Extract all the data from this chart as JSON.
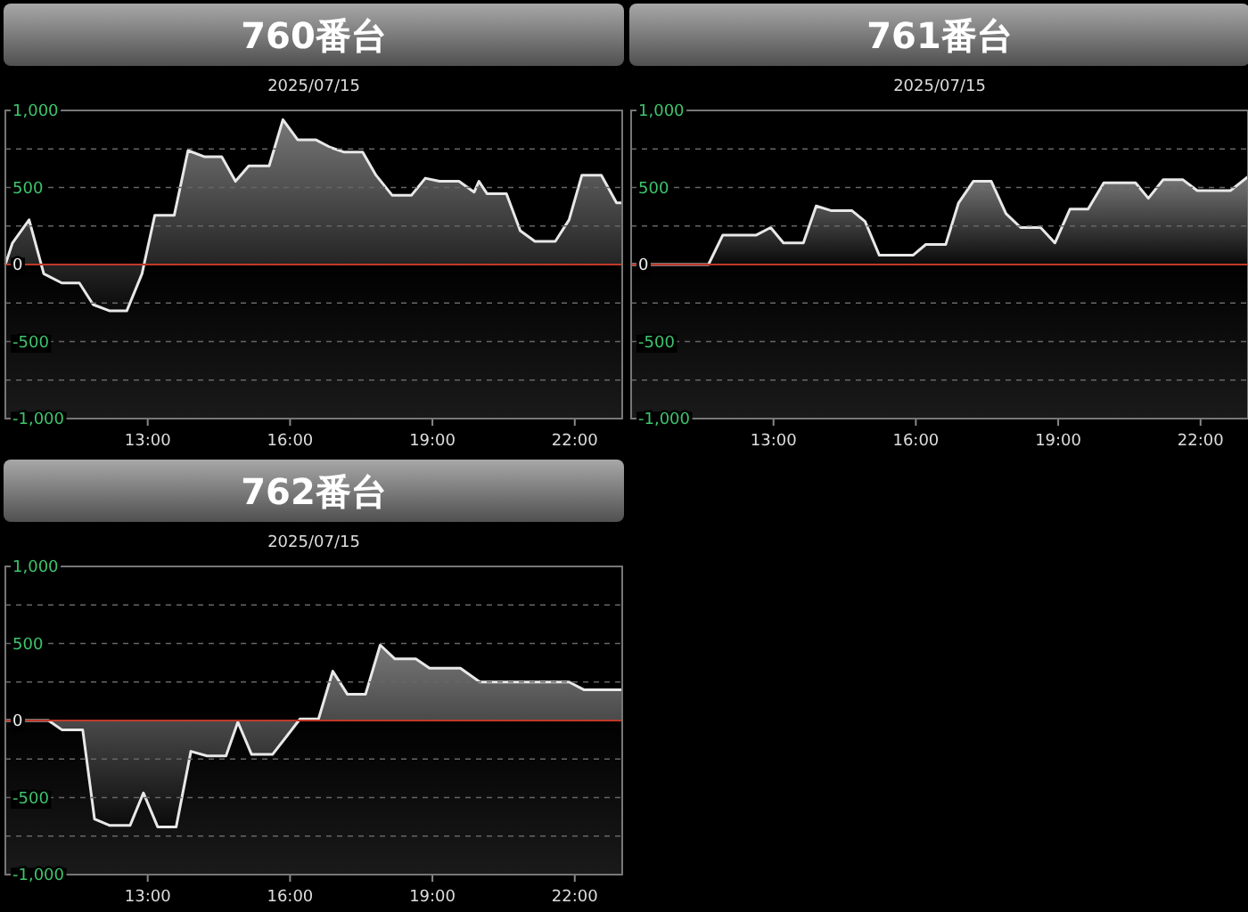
{
  "chart_data": [
    {
      "type": "area",
      "title": "760番台",
      "subtitle": "2025/07/15",
      "xlim": [
        10,
        23
      ],
      "xticks": [
        {
          "value": 13,
          "label": "13:00"
        },
        {
          "value": 16,
          "label": "16:00"
        },
        {
          "value": 19,
          "label": "19:00"
        },
        {
          "value": 22,
          "label": "22:00"
        }
      ],
      "ylim": [
        -1000,
        1000
      ],
      "yticks": [
        {
          "value": 1000,
          "label": "1,000"
        },
        {
          "value": 750,
          "label": null
        },
        {
          "value": 500,
          "label": "500"
        },
        {
          "value": 250,
          "label": null
        },
        {
          "value": 0,
          "label": "0"
        },
        {
          "value": -250,
          "label": null
        },
        {
          "value": -500,
          "label": "-500"
        },
        {
          "value": -750,
          "label": null
        },
        {
          "value": -1000,
          "label": "-1,000"
        }
      ],
      "grid": "y",
      "ref_lines": [
        {
          "axis": "y",
          "value": 0,
          "color": "#c0392b"
        }
      ],
      "series": [
        {
          "color": "#e8e8e8",
          "x": [
            10,
            10.15,
            10.5,
            10.81,
            11.19,
            11.56,
            11.85,
            12.19,
            12.56,
            12.88,
            13.15,
            13.56,
            13.85,
            14.19,
            14.56,
            14.85,
            15.13,
            15.56,
            15.85,
            16.16,
            16.54,
            16.85,
            17.13,
            17.53,
            17.81,
            18.15,
            18.56,
            18.85,
            19.15,
            19.56,
            19.88,
            19.98,
            20.15,
            20.56,
            20.85,
            21.16,
            21.59,
            21.88,
            22.15,
            22.56,
            22.88,
            23
          ],
          "values": [
            0,
            140,
            290,
            -60,
            -120,
            -120,
            -260,
            -300,
            -300,
            -60,
            320,
            320,
            740,
            700,
            700,
            540,
            640,
            640,
            940,
            810,
            810,
            760,
            730,
            730,
            580,
            450,
            450,
            560,
            540,
            540,
            470,
            540,
            460,
            460,
            220,
            150,
            150,
            290,
            580,
            580,
            400,
            400
          ]
        }
      ]
    },
    {
      "type": "area",
      "title": "761番台",
      "subtitle": "2025/07/15",
      "xlim": [
        10,
        23
      ],
      "xticks": [
        {
          "value": 13,
          "label": "13:00"
        },
        {
          "value": 16,
          "label": "16:00"
        },
        {
          "value": 19,
          "label": "19:00"
        },
        {
          "value": 22,
          "label": "22:00"
        }
      ],
      "ylim": [
        -1000,
        1000
      ],
      "yticks": [
        {
          "value": 1000,
          "label": "1,000"
        },
        {
          "value": 750,
          "label": null
        },
        {
          "value": 500,
          "label": "500"
        },
        {
          "value": 250,
          "label": null
        },
        {
          "value": 0,
          "label": "0"
        },
        {
          "value": -250,
          "label": null
        },
        {
          "value": -500,
          "label": "-500"
        },
        {
          "value": -750,
          "label": null
        },
        {
          "value": -1000,
          "label": "-1,000"
        }
      ],
      "grid": "y",
      "ref_lines": [
        {
          "axis": "y",
          "value": 0,
          "color": "#c0392b"
        }
      ],
      "series": [
        {
          "color": "#e8e8e8",
          "x": [
            10,
            11.63,
            11.93,
            12.63,
            12.94,
            13.21,
            13.63,
            13.9,
            14.21,
            14.65,
            14.93,
            15.23,
            15.94,
            16.21,
            16.63,
            16.9,
            17.21,
            17.59,
            17.9,
            18.21,
            18.63,
            18.93,
            19.25,
            19.63,
            19.96,
            20.63,
            20.9,
            21.21,
            21.63,
            21.93,
            22.63,
            23
          ],
          "values": [
            0,
            0,
            190,
            190,
            240,
            140,
            140,
            380,
            350,
            350,
            280,
            60,
            60,
            130,
            130,
            400,
            540,
            540,
            330,
            240,
            240,
            140,
            360,
            360,
            530,
            530,
            430,
            550,
            550,
            480,
            480,
            570
          ]
        }
      ]
    },
    {
      "type": "area",
      "title": "762番台",
      "subtitle": "2025/07/15",
      "xlim": [
        10,
        23
      ],
      "xticks": [
        {
          "value": 13,
          "label": "13:00"
        },
        {
          "value": 16,
          "label": "16:00"
        },
        {
          "value": 19,
          "label": "19:00"
        },
        {
          "value": 22,
          "label": "22:00"
        }
      ],
      "ylim": [
        -1000,
        1000
      ],
      "yticks": [
        {
          "value": 1000,
          "label": "1,000"
        },
        {
          "value": 750,
          "label": null
        },
        {
          "value": 500,
          "label": "500"
        },
        {
          "value": 250,
          "label": null
        },
        {
          "value": 0,
          "label": "0"
        },
        {
          "value": -250,
          "label": null
        },
        {
          "value": -500,
          "label": "-500"
        },
        {
          "value": -750,
          "label": null
        },
        {
          "value": -1000,
          "label": "-1,000"
        }
      ],
      "grid": "y",
      "ref_lines": [
        {
          "axis": "y",
          "value": 0,
          "color": "#c0392b"
        }
      ],
      "series": [
        {
          "color": "#e8e8e8",
          "x": [
            10,
            10.91,
            11.19,
            11.63,
            11.88,
            12.19,
            12.63,
            12.91,
            13.21,
            13.6,
            13.91,
            14.25,
            14.65,
            14.9,
            15.19,
            15.63,
            15.91,
            16.21,
            16.6,
            16.9,
            17.21,
            17.59,
            17.9,
            18.21,
            18.65,
            18.94,
            19.59,
            20,
            21.88,
            22.19,
            23
          ],
          "values": [
            0,
            0,
            -60,
            -60,
            -640,
            -680,
            -680,
            -470,
            -690,
            -690,
            -200,
            -230,
            -230,
            -10,
            -220,
            -220,
            -110,
            10,
            10,
            320,
            170,
            170,
            490,
            400,
            400,
            340,
            340,
            250,
            250,
            200,
            200
          ]
        }
      ]
    }
  ]
}
